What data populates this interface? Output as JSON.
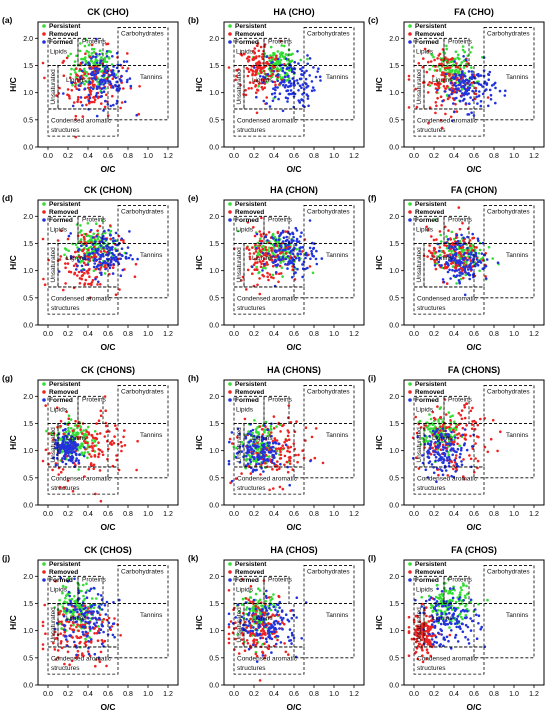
{
  "figure": {
    "legend_labels": [
      "Persistent",
      "Removed",
      "Formed"
    ],
    "colors": {
      "persistent": "#33dd33",
      "removed": "#ee2222",
      "formed": "#2233dd"
    },
    "region_labels": {
      "lipids": "Lipids",
      "proteins": "Proteins",
      "carbohydrates": "Carbohydrates",
      "lignins": "Lignins",
      "tannins": "Tannins",
      "unsaturated": "Unsaturated",
      "condensed": "Condensed aromatic",
      "structures": "structures"
    }
  },
  "chart_data": [
    {
      "type": "scatter",
      "panel": "(a)",
      "title": "CK (CHO)",
      "xlabel": "O/C",
      "ylabel": "H/C",
      "xlim": [
        -0.1,
        1.3
      ],
      "ylim": [
        0,
        2.3
      ],
      "xticks": [
        "0.0",
        "0.2",
        "0.4",
        "0.6",
        "0.8",
        "1.0",
        "1.2"
      ],
      "yticks": [
        "0.0",
        "0.5",
        "1.0",
        "1.5",
        "2.0"
      ],
      "series": [
        {
          "name": "Persistent",
          "color": "#33dd33",
          "center": [
            0.45,
            1.45
          ],
          "spread": [
            0.18,
            0.35
          ]
        },
        {
          "name": "Removed",
          "color": "#ee2222",
          "center": [
            0.45,
            1.2
          ],
          "spread": [
            0.28,
            0.5
          ]
        },
        {
          "name": "Formed",
          "color": "#2233dd",
          "center": [
            0.55,
            1.2
          ],
          "spread": [
            0.25,
            0.4
          ]
        }
      ]
    },
    {
      "type": "scatter",
      "panel": "(b)",
      "title": "HA (CHO)",
      "xlabel": "O/C",
      "ylabel": "H/C",
      "xlim": [
        -0.1,
        1.3
      ],
      "ylim": [
        0,
        2.3
      ],
      "xticks": [
        "0.0",
        "0.2",
        "0.4",
        "0.6",
        "0.8",
        "1.0",
        "1.2"
      ],
      "yticks": [
        "0.0",
        "0.5",
        "1.0",
        "1.5",
        "2.0"
      ],
      "series": [
        {
          "name": "Persistent",
          "color": "#33dd33",
          "center": [
            0.45,
            1.5
          ],
          "spread": [
            0.15,
            0.25
          ]
        },
        {
          "name": "Removed",
          "color": "#ee2222",
          "center": [
            0.25,
            1.4
          ],
          "spread": [
            0.18,
            0.45
          ]
        },
        {
          "name": "Formed",
          "color": "#2233dd",
          "center": [
            0.55,
            1.2
          ],
          "spread": [
            0.22,
            0.4
          ]
        }
      ]
    },
    {
      "type": "scatter",
      "panel": "(c)",
      "title": "FA (CHO)",
      "xlabel": "O/C",
      "ylabel": "H/C",
      "xlim": [
        -0.1,
        1.3
      ],
      "ylim": [
        0,
        2.3
      ],
      "xticks": [
        "0.0",
        "0.2",
        "0.4",
        "0.6",
        "0.8",
        "1.0",
        "1.2"
      ],
      "yticks": [
        "0.0",
        "0.5",
        "1.0",
        "1.5",
        "2.0"
      ],
      "series": [
        {
          "name": "Persistent",
          "color": "#33dd33",
          "center": [
            0.4,
            1.4
          ],
          "spread": [
            0.18,
            0.35
          ]
        },
        {
          "name": "Removed",
          "color": "#ee2222",
          "center": [
            0.35,
            1.2
          ],
          "spread": [
            0.25,
            0.45
          ]
        },
        {
          "name": "Formed",
          "color": "#2233dd",
          "center": [
            0.55,
            1.1
          ],
          "spread": [
            0.22,
            0.35
          ]
        }
      ]
    },
    {
      "type": "scatter",
      "panel": "(d)",
      "title": "CK (CHON)",
      "xlabel": "O/C",
      "ylabel": "H/C",
      "xlim": [
        -0.1,
        1.3
      ],
      "ylim": [
        0,
        2.3
      ],
      "xticks": [
        "0.0",
        "0.2",
        "0.4",
        "0.6",
        "0.8",
        "1.0",
        "1.2"
      ],
      "yticks": [
        "0.0",
        "0.5",
        "1.0",
        "1.5",
        "2.0"
      ],
      "series": [
        {
          "name": "Persistent",
          "color": "#33dd33",
          "center": [
            0.45,
            1.4
          ],
          "spread": [
            0.18,
            0.3
          ]
        },
        {
          "name": "Removed",
          "color": "#ee2222",
          "center": [
            0.4,
            1.2
          ],
          "spread": [
            0.28,
            0.5
          ]
        },
        {
          "name": "Formed",
          "color": "#2233dd",
          "center": [
            0.55,
            1.3
          ],
          "spread": [
            0.22,
            0.35
          ]
        }
      ]
    },
    {
      "type": "scatter",
      "panel": "(e)",
      "title": "HA (CHON)",
      "xlabel": "O/C",
      "ylabel": "H/C",
      "xlim": [
        -0.1,
        1.3
      ],
      "ylim": [
        0,
        2.3
      ],
      "xticks": [
        "0.0",
        "0.2",
        "0.4",
        "0.6",
        "0.8",
        "1.0",
        "1.2"
      ],
      "yticks": [
        "0.0",
        "0.5",
        "1.0",
        "1.5",
        "2.0"
      ],
      "series": [
        {
          "name": "Persistent",
          "color": "#33dd33",
          "center": [
            0.45,
            1.35
          ],
          "spread": [
            0.2,
            0.3
          ]
        },
        {
          "name": "Removed",
          "color": "#ee2222",
          "center": [
            0.35,
            1.3
          ],
          "spread": [
            0.25,
            0.45
          ]
        },
        {
          "name": "Formed",
          "color": "#2233dd",
          "center": [
            0.55,
            1.35
          ],
          "spread": [
            0.22,
            0.35
          ]
        }
      ]
    },
    {
      "type": "scatter",
      "panel": "(f)",
      "title": "FA (CHON)",
      "xlabel": "O/C",
      "ylabel": "H/C",
      "xlim": [
        -0.1,
        1.3
      ],
      "ylim": [
        0,
        2.3
      ],
      "xticks": [
        "0.0",
        "0.2",
        "0.4",
        "0.6",
        "0.8",
        "1.0",
        "1.2"
      ],
      "yticks": [
        "0.0",
        "0.5",
        "1.0",
        "1.5",
        "2.0"
      ],
      "series": [
        {
          "name": "Persistent",
          "color": "#33dd33",
          "center": [
            0.45,
            1.3
          ],
          "spread": [
            0.2,
            0.3
          ]
        },
        {
          "name": "Removed",
          "color": "#ee2222",
          "center": [
            0.4,
            1.3
          ],
          "spread": [
            0.22,
            0.4
          ]
        },
        {
          "name": "Formed",
          "color": "#2233dd",
          "center": [
            0.5,
            1.2
          ],
          "spread": [
            0.22,
            0.35
          ]
        }
      ]
    },
    {
      "type": "scatter",
      "panel": "(g)",
      "title": "CK (CHONS)",
      "xlabel": "O/C",
      "ylabel": "H/C",
      "xlim": [
        -0.1,
        1.3
      ],
      "ylim": [
        0,
        2.3
      ],
      "xticks": [
        "0.0",
        "0.2",
        "0.4",
        "0.6",
        "0.8",
        "1.0",
        "1.2"
      ],
      "yticks": [
        "0.0",
        "0.5",
        "1.0",
        "1.5",
        "2.0"
      ],
      "series": [
        {
          "name": "Persistent",
          "color": "#33dd33",
          "center": [
            0.25,
            1.2
          ],
          "spread": [
            0.15,
            0.3
          ]
        },
        {
          "name": "Removed",
          "color": "#ee2222",
          "center": [
            0.4,
            1.1
          ],
          "spread": [
            0.35,
            0.55
          ]
        },
        {
          "name": "Formed",
          "color": "#2233dd",
          "center": [
            0.2,
            1.0
          ],
          "spread": [
            0.12,
            0.25
          ]
        }
      ]
    },
    {
      "type": "scatter",
      "panel": "(h)",
      "title": "HA (CHONS)",
      "xlabel": "O/C",
      "ylabel": "H/C",
      "xlim": [
        -0.1,
        1.3
      ],
      "ylim": [
        0,
        2.3
      ],
      "xticks": [
        "0.0",
        "0.2",
        "0.4",
        "0.6",
        "0.8",
        "1.0",
        "1.2"
      ],
      "yticks": [
        "0.0",
        "0.5",
        "1.0",
        "1.5",
        "2.0"
      ],
      "series": [
        {
          "name": "Persistent",
          "color": "#33dd33",
          "center": [
            0.25,
            1.1
          ],
          "spread": [
            0.15,
            0.3
          ]
        },
        {
          "name": "Removed",
          "color": "#ee2222",
          "center": [
            0.4,
            1.0
          ],
          "spread": [
            0.3,
            0.5
          ]
        },
        {
          "name": "Formed",
          "color": "#2233dd",
          "center": [
            0.25,
            1.0
          ],
          "spread": [
            0.2,
            0.35
          ]
        }
      ]
    },
    {
      "type": "scatter",
      "panel": "(i)",
      "title": "FA (CHONS)",
      "xlabel": "O/C",
      "ylabel": "H/C",
      "xlim": [
        -0.1,
        1.3
      ],
      "ylim": [
        0,
        2.3
      ],
      "xticks": [
        "0.0",
        "0.2",
        "0.4",
        "0.6",
        "0.8",
        "1.0",
        "1.2"
      ],
      "yticks": [
        "0.0",
        "0.5",
        "1.0",
        "1.5",
        "2.0"
      ],
      "series": [
        {
          "name": "Persistent",
          "color": "#33dd33",
          "center": [
            0.25,
            1.3
          ],
          "spread": [
            0.15,
            0.3
          ]
        },
        {
          "name": "Removed",
          "color": "#ee2222",
          "center": [
            0.4,
            1.2
          ],
          "spread": [
            0.3,
            0.5
          ]
        },
        {
          "name": "Formed",
          "color": "#2233dd",
          "center": [
            0.3,
            1.0
          ],
          "spread": [
            0.2,
            0.35
          ]
        }
      ]
    },
    {
      "type": "scatter",
      "panel": "(j)",
      "title": "CK (CHOS)",
      "xlabel": "O/C",
      "ylabel": "H/C",
      "xlim": [
        -0.1,
        1.3
      ],
      "ylim": [
        0,
        2.3
      ],
      "xticks": [
        "0.0",
        "0.2",
        "0.4",
        "0.6",
        "0.8",
        "1.0",
        "1.2"
      ],
      "yticks": [
        "0.0",
        "0.5",
        "1.0",
        "1.5",
        "2.0"
      ],
      "series": [
        {
          "name": "Persistent",
          "color": "#33dd33",
          "center": [
            0.3,
            1.4
          ],
          "spread": [
            0.18,
            0.4
          ]
        },
        {
          "name": "Removed",
          "color": "#ee2222",
          "center": [
            0.3,
            1.0
          ],
          "spread": [
            0.3,
            0.5
          ]
        },
        {
          "name": "Formed",
          "color": "#2233dd",
          "center": [
            0.35,
            1.2
          ],
          "spread": [
            0.25,
            0.45
          ]
        }
      ]
    },
    {
      "type": "scatter",
      "panel": "(k)",
      "title": "HA (CHOS)",
      "xlabel": "O/C",
      "ylabel": "H/C",
      "xlim": [
        -0.1,
        1.3
      ],
      "ylim": [
        0,
        2.3
      ],
      "xticks": [
        "0.0",
        "0.2",
        "0.4",
        "0.6",
        "0.8",
        "1.0",
        "1.2"
      ],
      "yticks": [
        "0.0",
        "0.5",
        "1.0",
        "1.5",
        "2.0"
      ],
      "series": [
        {
          "name": "Persistent",
          "color": "#33dd33",
          "center": [
            0.25,
            1.3
          ],
          "spread": [
            0.15,
            0.35
          ]
        },
        {
          "name": "Removed",
          "color": "#ee2222",
          "center": [
            0.25,
            1.1
          ],
          "spread": [
            0.25,
            0.5
          ]
        },
        {
          "name": "Formed",
          "color": "#2233dd",
          "center": [
            0.35,
            1.1
          ],
          "spread": [
            0.25,
            0.4
          ]
        }
      ]
    },
    {
      "type": "scatter",
      "panel": "(l)",
      "title": "FA (CHOS)",
      "xlabel": "O/C",
      "ylabel": "H/C",
      "xlim": [
        -0.1,
        1.3
      ],
      "ylim": [
        0,
        2.3
      ],
      "xticks": [
        "0.0",
        "0.2",
        "0.4",
        "0.6",
        "0.8",
        "1.0",
        "1.2"
      ],
      "yticks": [
        "0.0",
        "0.5",
        "1.0",
        "1.5",
        "2.0"
      ],
      "series": [
        {
          "name": "Persistent",
          "color": "#33dd33",
          "center": [
            0.35,
            1.5
          ],
          "spread": [
            0.18,
            0.3
          ]
        },
        {
          "name": "Removed",
          "color": "#ee2222",
          "center": [
            0.1,
            0.9
          ],
          "spread": [
            0.12,
            0.35
          ]
        },
        {
          "name": "Formed",
          "color": "#2233dd",
          "center": [
            0.35,
            1.2
          ],
          "spread": [
            0.25,
            0.4
          ]
        }
      ]
    }
  ]
}
